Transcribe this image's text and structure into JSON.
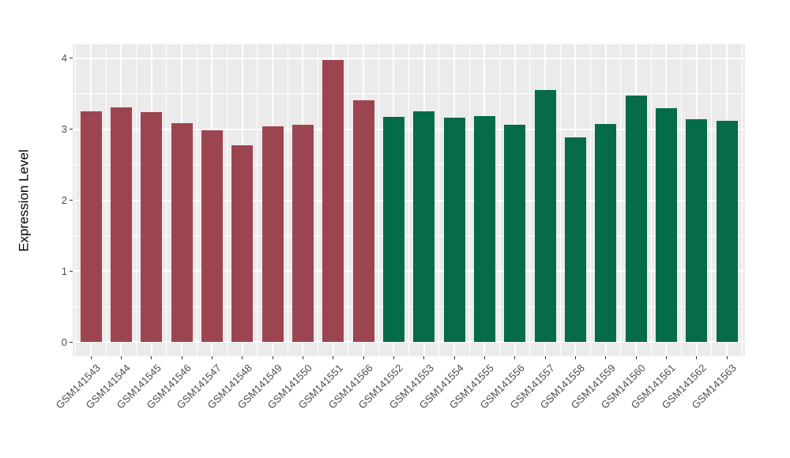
{
  "chart_data": {
    "type": "bar",
    "title": "",
    "xlabel": "",
    "ylabel": "Expression Level",
    "categories": [
      "GSM141543",
      "GSM141544",
      "GSM141545",
      "GSM141546",
      "GSM141547",
      "GSM141548",
      "GSM141549",
      "GSM141550",
      "GSM141551",
      "GSM141566",
      "GSM141552",
      "GSM141553",
      "GSM141554",
      "GSM141555",
      "GSM141556",
      "GSM141557",
      "GSM141558",
      "GSM141559",
      "GSM141560",
      "GSM141561",
      "GSM141562",
      "GSM141563"
    ],
    "values": [
      3.25,
      3.31,
      3.24,
      3.09,
      2.99,
      2.77,
      3.04,
      3.06,
      3.98,
      3.41,
      3.17,
      3.25,
      3.16,
      3.19,
      3.06,
      3.55,
      2.89,
      3.08,
      3.48,
      3.3,
      3.14,
      3.12
    ],
    "bar_color_groups": [
      {
        "name": "group-1",
        "color": "#9C4450",
        "from": 0,
        "to": 9
      },
      {
        "name": "group-2",
        "color": "#066B48",
        "from": 10,
        "to": 21
      }
    ],
    "ylim": [
      0,
      4
    ],
    "yticks": [
      "0",
      "1",
      "2",
      "3",
      "4"
    ],
    "grid": {
      "major": true,
      "minor": true,
      "color": "#FFFFFF"
    },
    "legend": "none",
    "panel_background": "#EBEBEB"
  },
  "axis_style": {
    "tick_color": "#333333",
    "tick_label_color": "#4D4D4D",
    "title_color": "#000000"
  }
}
